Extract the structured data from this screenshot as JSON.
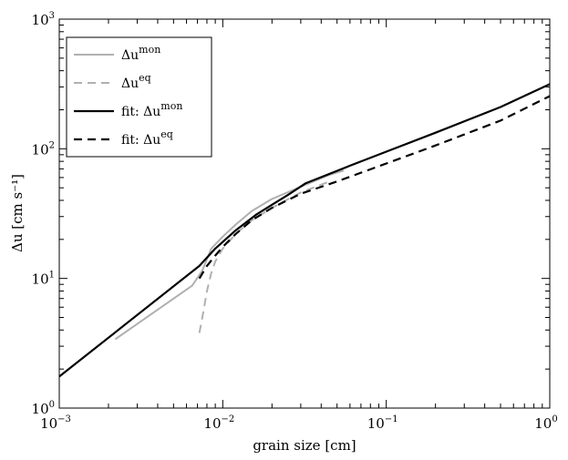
{
  "chart_data": {
    "type": "line",
    "xlabel": "grain size [cm]",
    "ylabel": "Δu [cm s⁻¹]",
    "xscale": "log",
    "yscale": "log",
    "xlim": [
      0.001,
      1
    ],
    "ylim": [
      1,
      1000
    ],
    "grid": false,
    "legend_position": "top-left",
    "x_ticks": [
      {
        "value": 0.001,
        "base": "10",
        "exp": "−3"
      },
      {
        "value": 0.01,
        "base": "10",
        "exp": "−2"
      },
      {
        "value": 0.1,
        "base": "10",
        "exp": "−1"
      },
      {
        "value": 1,
        "base": "10",
        "exp": "0"
      }
    ],
    "y_ticks": [
      {
        "value": 1,
        "base": "10",
        "exp": "0"
      },
      {
        "value": 10,
        "base": "10",
        "exp": "1"
      },
      {
        "value": 100,
        "base": "10",
        "exp": "2"
      },
      {
        "value": 1000,
        "base": "10",
        "exp": "3"
      }
    ],
    "series": [
      {
        "name": "Δu^mon",
        "legend_base": "Δu",
        "legend_sup": "mon",
        "color": "#b0b0b0",
        "dash": "solid",
        "x": [
          0.0022,
          0.0065,
          0.0075,
          0.0085,
          0.01,
          0.012,
          0.015,
          0.02,
          0.03,
          0.045,
          0.055
        ],
        "y": [
          3.4,
          8.8,
          11.5,
          17,
          21,
          26,
          33,
          41,
          51,
          63,
          68
        ]
      },
      {
        "name": "Δu^eq",
        "legend_base": "Δu",
        "legend_sup": "eq",
        "color": "#b0b0b0",
        "dash": "dashed",
        "x": [
          0.0072,
          0.0076,
          0.008,
          0.0085,
          0.009,
          0.01,
          0.012,
          0.015,
          0.02,
          0.03,
          0.045
        ],
        "y": [
          3.8,
          5.5,
          8,
          11,
          13.5,
          17,
          22,
          28,
          35,
          46,
          56
        ]
      },
      {
        "name": "fit: Δu^mon",
        "legend_base": "fit:  Δu",
        "legend_sup": "mon",
        "color": "#000000",
        "dash": "solid",
        "x": [
          0.001,
          0.0072,
          0.009,
          0.012,
          0.016,
          0.02,
          0.025,
          0.032,
          0.06,
          0.1,
          0.2,
          0.5,
          1
        ],
        "y": [
          1.75,
          12.5,
          17,
          23.5,
          31,
          37,
          44,
          54,
          74,
          95,
          133,
          210,
          315
        ]
      },
      {
        "name": "fit: Δu^eq",
        "legend_base": "fit:  Δu",
        "legend_sup": "eq",
        "color": "#000000",
        "dash": "dashed",
        "x": [
          0.0072,
          0.008,
          0.009,
          0.01,
          0.012,
          0.015,
          0.02,
          0.03,
          0.05,
          0.1,
          0.2,
          0.5,
          1
        ],
        "y": [
          10,
          12.5,
          15,
          17.5,
          22,
          28,
          35,
          45,
          56,
          77,
          106,
          165,
          255
        ]
      }
    ]
  }
}
